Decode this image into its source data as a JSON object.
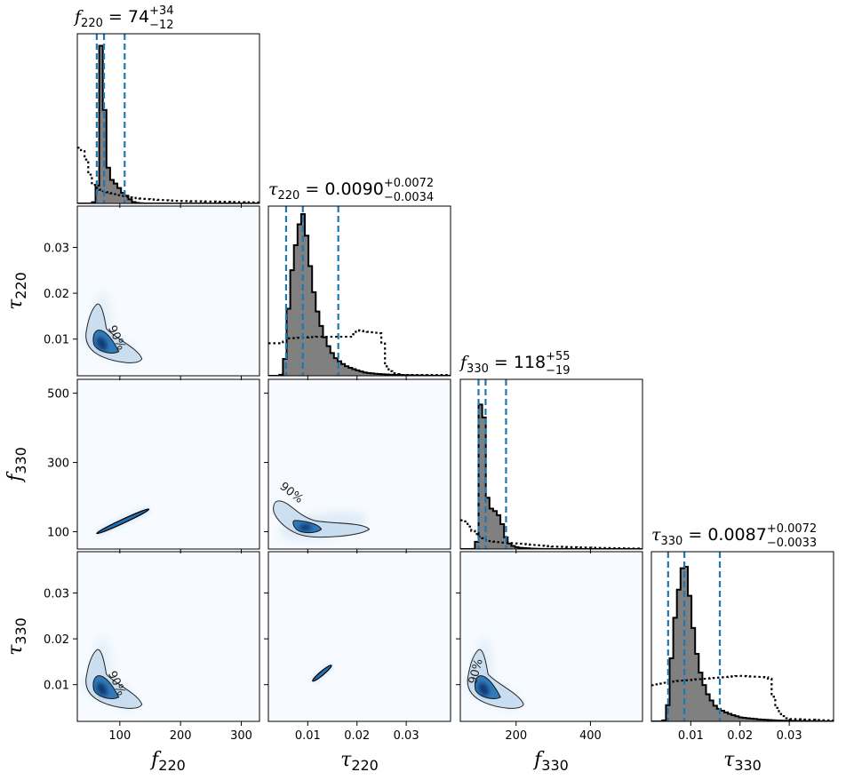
{
  "chart_data": {
    "type": "corner",
    "parameters": [
      {
        "symbol": "f",
        "sub": "220",
        "range": [
          30,
          330
        ],
        "ticks": [
          100,
          200,
          300
        ],
        "tick_labels": [
          "100",
          "200",
          "300"
        ],
        "title": {
          "median": "74",
          "plus": "+34",
          "minus": "−12"
        },
        "quantiles": [
          62,
          74,
          108
        ]
      },
      {
        "symbol": "τ",
        "sub": "220",
        "range": [
          0.002,
          0.039
        ],
        "ticks": [
          0.01,
          0.02,
          0.03
        ],
        "tick_labels": [
          "0.01",
          "0.02",
          "0.03"
        ],
        "title": {
          "median": "0.0090",
          "plus": "+0.0072",
          "minus": "−0.0034"
        },
        "quantiles": [
          0.0056,
          0.009,
          0.0162
        ]
      },
      {
        "symbol": "f",
        "sub": "330",
        "range": [
          50,
          540
        ],
        "ticks": [
          100,
          300,
          500
        ],
        "tick_labels": [
          "100",
          "300",
          "500"
        ],
        "ticks_bottom": [
          200,
          400
        ],
        "tick_labels_bottom": [
          "200",
          "400"
        ],
        "title": {
          "median": "118",
          "plus": "+55",
          "minus": "−19"
        },
        "quantiles": [
          99,
          118,
          173
        ]
      },
      {
        "symbol": "τ",
        "sub": "330",
        "range": [
          0.002,
          0.039
        ],
        "ticks": [
          0.01,
          0.02,
          0.03
        ],
        "tick_labels": [
          "0.01",
          "0.02",
          "0.03"
        ],
        "title": {
          "median": "0.0087",
          "plus": "+0.0072",
          "minus": "−0.0033"
        },
        "quantiles": [
          0.0054,
          0.0087,
          0.0159
        ]
      }
    ],
    "contour_label": "90%",
    "marginals": [
      {
        "posterior": [
          [
            54,
            0
          ],
          [
            58,
            0.01
          ],
          [
            62,
            0.04
          ],
          [
            64,
            0.18
          ],
          [
            66,
            0.55
          ],
          [
            68,
            0.94
          ],
          [
            70,
            1.0
          ],
          [
            72,
            0.92
          ],
          [
            74,
            0.7
          ],
          [
            76,
            0.45
          ],
          [
            78,
            0.28
          ],
          [
            82,
            0.2
          ],
          [
            86,
            0.15
          ],
          [
            90,
            0.13
          ],
          [
            94,
            0.12
          ],
          [
            98,
            0.1
          ],
          [
            102,
            0.08
          ],
          [
            106,
            0.06
          ],
          [
            110,
            0.05
          ],
          [
            114,
            0.04
          ],
          [
            118,
            0.02
          ],
          [
            122,
            0.01
          ],
          [
            126,
            0.005
          ],
          [
            132,
            0.002
          ],
          [
            140,
            0
          ]
        ],
        "prior": [
          [
            30,
            0.35
          ],
          [
            42,
            0.32
          ],
          [
            48,
            0.22
          ],
          [
            55,
            0.12
          ],
          [
            65,
            0.09
          ],
          [
            80,
            0.07
          ],
          [
            100,
            0.05
          ],
          [
            120,
            0.035
          ],
          [
            150,
            0.025
          ],
          [
            200,
            0.015
          ],
          [
            250,
            0.012
          ],
          [
            300,
            0.008
          ],
          [
            330,
            0.006
          ]
        ]
      },
      {
        "posterior": [
          [
            0.0045,
            0
          ],
          [
            0.0052,
            0.05
          ],
          [
            0.0058,
            0.3
          ],
          [
            0.0064,
            0.55
          ],
          [
            0.0071,
            0.72
          ],
          [
            0.0078,
            0.85
          ],
          [
            0.0084,
            0.95
          ],
          [
            0.009,
            1.0
          ],
          [
            0.0097,
            0.88
          ],
          [
            0.0104,
            0.7
          ],
          [
            0.0111,
            0.54
          ],
          [
            0.0118,
            0.42
          ],
          [
            0.0125,
            0.33
          ],
          [
            0.0132,
            0.26
          ],
          [
            0.0139,
            0.2
          ],
          [
            0.0146,
            0.16
          ],
          [
            0.0153,
            0.12
          ],
          [
            0.016,
            0.1
          ],
          [
            0.0168,
            0.08
          ],
          [
            0.0178,
            0.06
          ],
          [
            0.019,
            0.045
          ],
          [
            0.02,
            0.035
          ],
          [
            0.021,
            0.025
          ],
          [
            0.022,
            0.018
          ],
          [
            0.024,
            0.012
          ],
          [
            0.026,
            0.008
          ],
          [
            0.028,
            0.005
          ],
          [
            0.03,
            0.004
          ],
          [
            0.032,
            0.002
          ],
          [
            0.035,
            0.001
          ],
          [
            0.038,
            0.0005
          ]
        ],
        "prior": [
          [
            0.002,
            0.2
          ],
          [
            0.005,
            0.2
          ],
          [
            0.006,
            0.23
          ],
          [
            0.012,
            0.24
          ],
          [
            0.019,
            0.24
          ],
          [
            0.02,
            0.28
          ],
          [
            0.025,
            0.26
          ],
          [
            0.026,
            0.06
          ],
          [
            0.027,
            0.02
          ],
          [
            0.029,
            0.005
          ],
          [
            0.039,
            0.005
          ]
        ]
      },
      {
        "posterior": [
          [
            84,
            0
          ],
          [
            90,
            0.01
          ],
          [
            96,
            0.06
          ],
          [
            100,
            0.45
          ],
          [
            104,
            0.9
          ],
          [
            108,
            1.0
          ],
          [
            112,
            0.95
          ],
          [
            116,
            0.62
          ],
          [
            120,
            0.38
          ],
          [
            126,
            0.27
          ],
          [
            132,
            0.25
          ],
          [
            140,
            0.24
          ],
          [
            150,
            0.22
          ],
          [
            160,
            0.18
          ],
          [
            168,
            0.1
          ],
          [
            176,
            0.05
          ],
          [
            184,
            0.03
          ],
          [
            195,
            0.015
          ],
          [
            210,
            0.008
          ],
          [
            240,
            0.003
          ],
          [
            270,
            0.001
          ],
          [
            300,
            0
          ]
        ],
        "prior": [
          [
            50,
            0.18
          ],
          [
            65,
            0.17
          ],
          [
            80,
            0.12
          ],
          [
            100,
            0.08
          ],
          [
            130,
            0.05
          ],
          [
            160,
            0.04
          ],
          [
            200,
            0.035
          ],
          [
            250,
            0.025
          ],
          [
            300,
            0.015
          ],
          [
            400,
            0.008
          ],
          [
            540,
            0.002
          ]
        ]
      },
      {
        "posterior": [
          [
            0.0045,
            0
          ],
          [
            0.0052,
            0.05
          ],
          [
            0.0058,
            0.28
          ],
          [
            0.0064,
            0.52
          ],
          [
            0.0071,
            0.72
          ],
          [
            0.0078,
            0.86
          ],
          [
            0.0084,
            0.96
          ],
          [
            0.0088,
            1.0
          ],
          [
            0.0095,
            0.85
          ],
          [
            0.0102,
            0.65
          ],
          [
            0.0109,
            0.48
          ],
          [
            0.0116,
            0.35
          ],
          [
            0.0123,
            0.26
          ],
          [
            0.013,
            0.2
          ],
          [
            0.0137,
            0.15
          ],
          [
            0.0144,
            0.12
          ],
          [
            0.0151,
            0.09
          ],
          [
            0.0158,
            0.075
          ],
          [
            0.0168,
            0.06
          ],
          [
            0.018,
            0.045
          ],
          [
            0.019,
            0.035
          ],
          [
            0.02,
            0.025
          ],
          [
            0.022,
            0.018
          ],
          [
            0.024,
            0.012
          ],
          [
            0.026,
            0.008
          ],
          [
            0.028,
            0.005
          ],
          [
            0.031,
            0.003
          ],
          [
            0.034,
            0.0015
          ],
          [
            0.038,
            0.0005
          ]
        ],
        "prior": [
          [
            0.002,
            0.22
          ],
          [
            0.005,
            0.24
          ],
          [
            0.008,
            0.25
          ],
          [
            0.012,
            0.26
          ],
          [
            0.02,
            0.28
          ],
          [
            0.026,
            0.27
          ],
          [
            0.027,
            0.12
          ],
          [
            0.028,
            0.05
          ],
          [
            0.03,
            0.015
          ],
          [
            0.039,
            0.005
          ]
        ]
      }
    ],
    "joint_estimates": {
      "1-0": {
        "center": [
          72,
          0.0092
        ],
        "shape": "banana"
      },
      "2-0": {
        "center": [
          100,
          125
        ],
        "shape": "line",
        "from": [
          62,
          95
        ],
        "to": [
          148,
          165
        ]
      },
      "2-1": {
        "center": [
          0.0095,
          112
        ],
        "shape": "curved"
      },
      "3-0": {
        "center": [
          72,
          0.0092
        ],
        "shape": "banana"
      },
      "3-1": {
        "center": [
          0.012,
          0.0115
        ],
        "shape": "line",
        "from": [
          0.011,
          0.0108
        ],
        "to": [
          0.0148,
          0.0142
        ]
      },
      "3-2": {
        "center": [
          115,
          0.0092
        ],
        "shape": "banana"
      }
    },
    "colors": {
      "hist_fill": "#808080",
      "quantile_line": "#1f77b4",
      "density_dark": "#08306b",
      "density_mid": "#2171b5",
      "density_light": "#c6dbef",
      "density_bg": "#f7fbff"
    }
  }
}
